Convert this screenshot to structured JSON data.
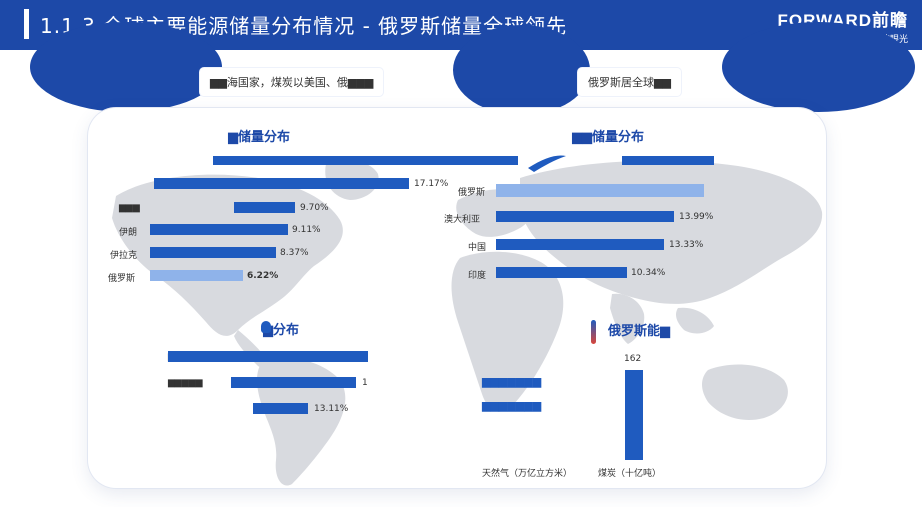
{
  "header": {
    "title": "1.1.3 全球主要能源储量分布情况 - 俄罗斯储量全球领先",
    "logo_main": "FORWARD前瞻",
    "logo_sub": "决策·投资一定要有前瞻的眼光"
  },
  "pills": {
    "left": "▆▆海国家，煤炭以美国、俄▆▆▆",
    "right": "俄罗斯居全球▆▆"
  },
  "colors": {
    "primary": "#1d49a8",
    "bar": "#1f5bbf",
    "bar_highlight": "#8fb3ea"
  },
  "chart_data": [
    {
      "type": "bar",
      "title": "▆储量分布",
      "categories": [
        "",
        "▆▆▆",
        "伊朗",
        "伊拉克",
        "俄罗斯"
      ],
      "values": [
        17.17,
        9.7,
        9.11,
        8.37,
        6.22
      ],
      "value_labels": [
        "17.17%",
        "9.70%",
        "9.11%",
        "8.37%",
        "6.22%"
      ],
      "highlight": "俄罗斯"
    },
    {
      "type": "bar",
      "title": "▆▆储量分布",
      "categories": [
        "俄罗斯",
        "澳大利亚",
        "中国",
        "印度"
      ],
      "values": [
        null,
        13.99,
        13.33,
        10.34
      ],
      "value_labels": [
        "",
        "13.99%",
        "13.33%",
        "10.34%"
      ],
      "highlight": "俄罗斯"
    },
    {
      "type": "bar",
      "title": "▆分布",
      "categories": [
        "▆▆▆▆",
        "▆▆▆▆▆",
        ""
      ],
      "values": [
        null,
        null,
        13.11
      ],
      "value_labels": [
        "",
        "1",
        "13.11%"
      ]
    },
    {
      "type": "bar",
      "title": "俄罗斯能▆",
      "row_labels": [
        "▆▆▆▆▆▆▆",
        "▆▆▆▆▆▆▆"
      ],
      "categories": [
        "天然气（万亿立方米）",
        "煤炭（十亿吨）"
      ],
      "values": [
        null,
        162
      ],
      "value_labels": [
        "",
        "162"
      ]
    }
  ]
}
